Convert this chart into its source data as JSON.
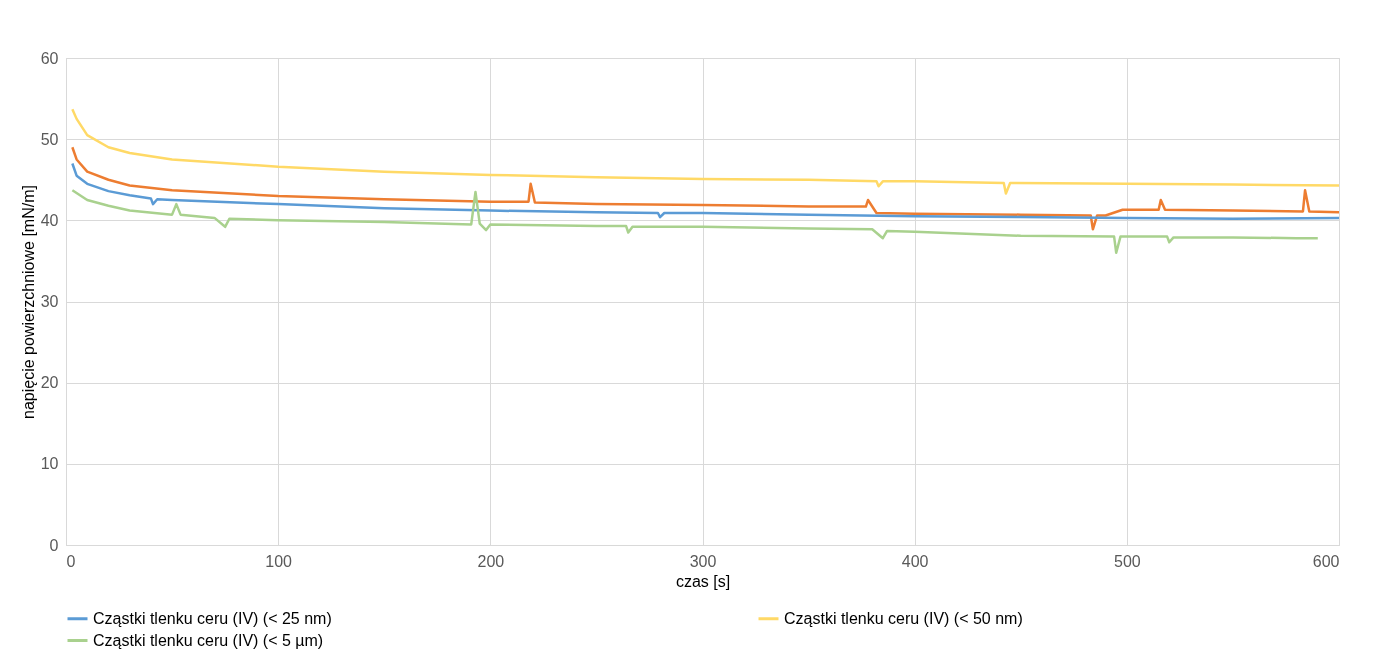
{
  "chart_data": {
    "type": "line",
    "xlabel": "czas [s]",
    "ylabel": "napięcie powierzchniowe [mN/m]",
    "xlim": [
      0,
      600
    ],
    "ylim": [
      0,
      60
    ],
    "xticks": [
      0,
      100,
      200,
      300,
      400,
      500,
      600
    ],
    "yticks": [
      0,
      10,
      20,
      30,
      40,
      50,
      60
    ],
    "grid": true,
    "legend": "bottom",
    "marker": "none",
    "line_style": "solid",
    "series": [
      {
        "color": "#ed7d31",
        "x": [
          3,
          5,
          10,
          20,
          30,
          50,
          100,
          150,
          200,
          218,
          219,
          221,
          250,
          300,
          350,
          377,
          378,
          382,
          400,
          450,
          483,
          484,
          486,
          490,
          498,
          515,
          516,
          518,
          550,
          583,
          584,
          586,
          600
        ],
        "values": [
          49,
          47.5,
          46,
          45,
          44.3,
          43.7,
          43,
          42.6,
          42.3,
          42.3,
          44.5,
          42.2,
          42,
          41.9,
          41.7,
          41.7,
          42.5,
          40.9,
          40.8,
          40.7,
          40.6,
          38.9,
          40.6,
          40.6,
          41.3,
          41.3,
          42.5,
          41.3,
          41.2,
          41.1,
          43.7,
          41.1,
          41
        ]
      },
      {
        "name": "Cząstki tlenku ceru (IV) (< 25 nm)",
        "color": "#5b9bd5",
        "x": [
          3,
          5,
          10,
          20,
          30,
          40,
          41,
          43,
          50,
          100,
          150,
          200,
          250,
          279,
          280,
          282,
          300,
          350,
          400,
          450,
          500,
          550,
          600
        ],
        "values": [
          47,
          45.5,
          44.5,
          43.6,
          43.1,
          42.7,
          42,
          42.6,
          42.5,
          42,
          41.5,
          41.2,
          41,
          40.9,
          40.4,
          40.9,
          40.9,
          40.7,
          40.5,
          40.4,
          40.3,
          40.2,
          40.3
        ]
      },
      {
        "name": "Cząstki tlenku ceru (IV) (< 50 nm)",
        "color": "#ffd966",
        "x": [
          3,
          5,
          10,
          20,
          30,
          50,
          100,
          150,
          200,
          250,
          300,
          350,
          382,
          383,
          385,
          400,
          442,
          443,
          445,
          500,
          550,
          600
        ],
        "values": [
          53.7,
          52.5,
          50.5,
          49,
          48.3,
          47.5,
          46.6,
          46,
          45.6,
          45.3,
          45.1,
          45,
          44.8,
          44.2,
          44.8,
          44.8,
          44.6,
          43.3,
          44.6,
          44.5,
          44.4,
          44.3
        ]
      },
      {
        "name": "Cząstki tlenku ceru (IV) (< 5 µm)",
        "color": "#a9d18e",
        "x": [
          3,
          10,
          20,
          30,
          50,
          52,
          54,
          70,
          75,
          77,
          100,
          150,
          191,
          193,
          195,
          198,
          200,
          250,
          264,
          265,
          267,
          300,
          350,
          380,
          385,
          387,
          400,
          450,
          494,
          495,
          497,
          500,
          519,
          520,
          522,
          550,
          580,
          590
        ],
        "values": [
          43.7,
          42.5,
          41.8,
          41.2,
          40.7,
          42,
          40.7,
          40.3,
          39.2,
          40.2,
          40,
          39.8,
          39.5,
          43.5,
          39.6,
          38.8,
          39.5,
          39.3,
          39.3,
          38.5,
          39.2,
          39.2,
          39,
          38.9,
          37.8,
          38.7,
          38.6,
          38.1,
          38,
          36,
          38,
          38,
          38,
          37.3,
          37.9,
          37.9,
          37.8,
          37.8
        ]
      }
    ]
  }
}
